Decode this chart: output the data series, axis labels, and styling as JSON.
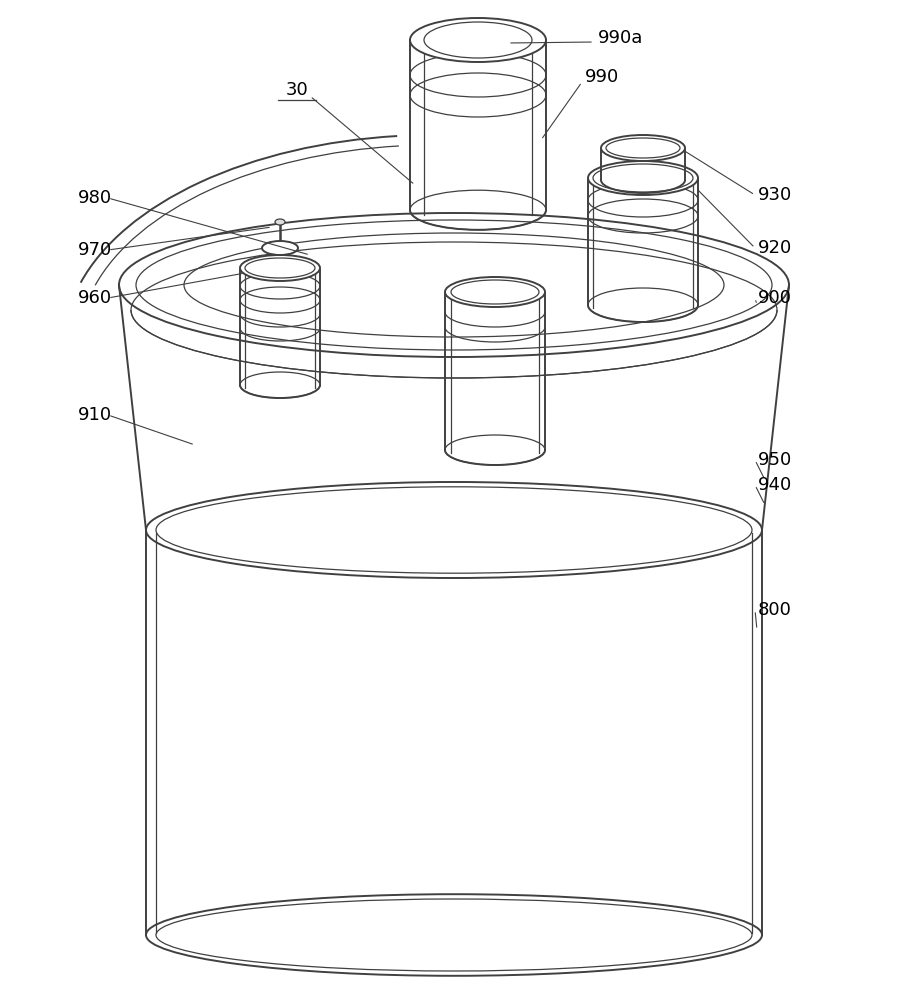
{
  "background_color": "#ffffff",
  "line_color": "#404040",
  "label_color": "#000000",
  "label_font_size": 13,
  "fig_width": 9.08,
  "fig_height": 10.0
}
